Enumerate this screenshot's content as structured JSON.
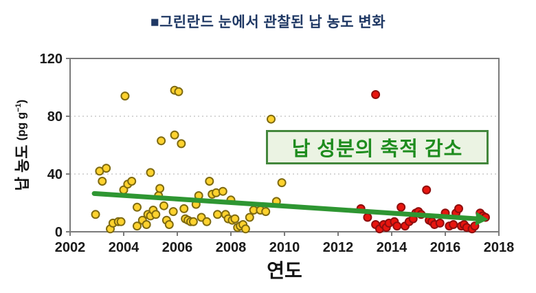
{
  "title": {
    "text": "■그린란드 눈에서 관찰된 납 농도 변화"
  },
  "annotation": {
    "text": "납 성분의 축적 감소"
  },
  "colors": {
    "title_navy": "#1F3864",
    "annotation_text": "#1E8C1E",
    "annotation_border": "#43873C",
    "annotation_bg": "#EBF3E3",
    "yellow_fill": "#FFD22E",
    "yellow_edge": "#7E6A10",
    "red_fill": "#E8150F",
    "red_edge": "#8F0E0E",
    "trend_green": "#2E9632",
    "axis_gray": "#7A7A7A",
    "grid_gray": "#C9C9C9"
  },
  "chart_data": {
    "type": "scatter",
    "title": "그린란드 눈에서 관찰된 납 농도 변화",
    "xlabel": "연도",
    "ylabel": "납 농도",
    "ylabel_unit": {
      "prefix": "(pg g",
      "sup": "−1",
      "suffix": ")"
    },
    "xlim": [
      2002,
      2018
    ],
    "ylim": [
      0,
      120
    ],
    "xticks": [
      2002,
      2004,
      2006,
      2008,
      2010,
      2012,
      2014,
      2016,
      2018
    ],
    "yticks": [
      0,
      40,
      80,
      120
    ],
    "grid_y": [
      40,
      80
    ],
    "legend": "none",
    "series": [
      {
        "name": "yellow-points",
        "color": "#FFD22E",
        "edge": "#7E6A10",
        "points": [
          [
            2002.95,
            12
          ],
          [
            2003.1,
            42
          ],
          [
            2003.2,
            35
          ],
          [
            2003.35,
            44
          ],
          [
            2003.5,
            2
          ],
          [
            2003.6,
            6
          ],
          [
            2003.8,
            7
          ],
          [
            2003.9,
            7
          ],
          [
            2004.0,
            29
          ],
          [
            2004.05,
            94
          ],
          [
            2004.15,
            33
          ],
          [
            2004.3,
            35
          ],
          [
            2004.5,
            17
          ],
          [
            2004.5,
            4
          ],
          [
            2004.7,
            8
          ],
          [
            2004.85,
            5
          ],
          [
            2004.9,
            12
          ],
          [
            2005.0,
            41
          ],
          [
            2005.0,
            11
          ],
          [
            2005.1,
            15
          ],
          [
            2005.2,
            12
          ],
          [
            2005.3,
            25
          ],
          [
            2005.35,
            30
          ],
          [
            2005.4,
            63
          ],
          [
            2005.5,
            18
          ],
          [
            2005.6,
            8
          ],
          [
            2005.7,
            5
          ],
          [
            2005.85,
            14
          ],
          [
            2005.9,
            98
          ],
          [
            2005.9,
            67
          ],
          [
            2006.05,
            97
          ],
          [
            2006.15,
            61
          ],
          [
            2006.25,
            16
          ],
          [
            2006.3,
            9
          ],
          [
            2006.4,
            8
          ],
          [
            2006.5,
            7
          ],
          [
            2006.6,
            7
          ],
          [
            2006.7,
            19
          ],
          [
            2006.8,
            25
          ],
          [
            2006.9,
            10
          ],
          [
            2007.1,
            7
          ],
          [
            2007.2,
            35
          ],
          [
            2007.3,
            26
          ],
          [
            2007.45,
            27
          ],
          [
            2007.5,
            12
          ],
          [
            2007.7,
            28
          ],
          [
            2007.8,
            12
          ],
          [
            2007.9,
            9
          ],
          [
            2008.0,
            22
          ],
          [
            2008.05,
            8
          ],
          [
            2008.15,
            9
          ],
          [
            2008.25,
            3
          ],
          [
            2008.35,
            4
          ],
          [
            2008.45,
            5
          ],
          [
            2008.55,
            2
          ],
          [
            2008.7,
            10
          ],
          [
            2008.85,
            15
          ],
          [
            2009.1,
            15
          ],
          [
            2009.3,
            14
          ],
          [
            2009.5,
            78
          ],
          [
            2009.7,
            21
          ],
          [
            2009.9,
            34
          ]
        ]
      },
      {
        "name": "red-points",
        "color": "#E8150F",
        "edge": "#8F0E0E",
        "points": [
          [
            2012.85,
            16
          ],
          [
            2013.1,
            10
          ],
          [
            2013.4,
            95
          ],
          [
            2013.4,
            5
          ],
          [
            2013.55,
            2
          ],
          [
            2013.7,
            5
          ],
          [
            2013.8,
            3
          ],
          [
            2013.9,
            6
          ],
          [
            2014.1,
            7
          ],
          [
            2014.2,
            4
          ],
          [
            2014.35,
            17
          ],
          [
            2014.5,
            4
          ],
          [
            2014.65,
            7
          ],
          [
            2014.8,
            9
          ],
          [
            2014.9,
            13
          ],
          [
            2015.0,
            14
          ],
          [
            2015.1,
            12
          ],
          [
            2015.3,
            29
          ],
          [
            2015.4,
            8
          ],
          [
            2015.5,
            7
          ],
          [
            2015.6,
            5
          ],
          [
            2015.8,
            6
          ],
          [
            2016.0,
            13
          ],
          [
            2016.15,
            4
          ],
          [
            2016.3,
            5
          ],
          [
            2016.4,
            13
          ],
          [
            2016.5,
            16
          ],
          [
            2016.6,
            4
          ],
          [
            2016.7,
            5
          ],
          [
            2016.8,
            3
          ],
          [
            2017.0,
            2
          ],
          [
            2017.1,
            4
          ],
          [
            2017.3,
            13
          ],
          [
            2017.4,
            11
          ],
          [
            2017.5,
            10
          ]
        ]
      }
    ],
    "trend_arrow": {
      "start": [
        2002.9,
        26.5
      ],
      "end": [
        2017.6,
        8.5
      ],
      "color": "#2E9632"
    }
  }
}
